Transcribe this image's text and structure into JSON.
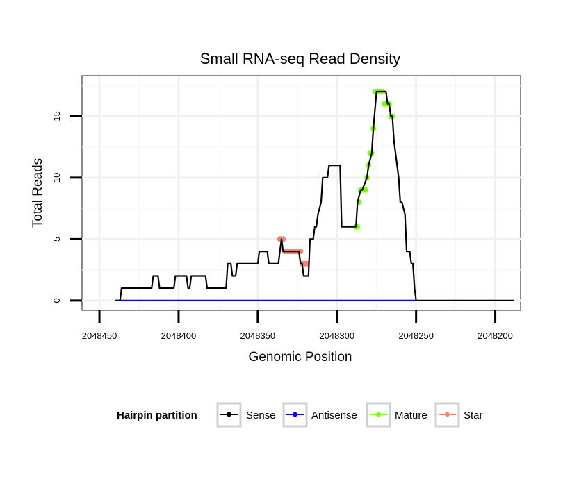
{
  "chart_data": {
    "type": "line",
    "title": "Small RNA-seq Read Density",
    "xlabel": "Genomic Position",
    "ylabel": "Total Reads",
    "xlim": [
      2048461,
      2048184
    ],
    "ylim": [
      -0.8,
      18.3
    ],
    "x_reversed": true,
    "grid": true,
    "x_ticks": [
      2048450,
      2048400,
      2048350,
      2048300,
      2048250,
      2048200
    ],
    "y_ticks": [
      0,
      5,
      10,
      15
    ],
    "legend": {
      "title": "Hairpin partition",
      "position": "bottom",
      "entries": [
        {
          "name": "Sense",
          "color": "#000000"
        },
        {
          "name": "Antisense",
          "color": "#0000ff"
        },
        {
          "name": "Mature",
          "color": "#7fff00"
        },
        {
          "name": "Star",
          "color": "#fa8072"
        }
      ]
    },
    "series": [
      {
        "name": "Sense",
        "color": "#000000",
        "kind": "line",
        "x": [
          2048440,
          2048437,
          2048436,
          2048417,
          2048416,
          2048413,
          2048412,
          2048403,
          2048402,
          2048395,
          2048394,
          2048393,
          2048392,
          2048383,
          2048382,
          2048370,
          2048369,
          2048367,
          2048366,
          2048364,
          2048363,
          2048358,
          2048357,
          2048350,
          2048349,
          2048344,
          2048343,
          2048337,
          2048336,
          2048335,
          2048334,
          2048324,
          2048323,
          2048322,
          2048321,
          2048318,
          2048317,
          2048315,
          2048314,
          2048313,
          2048312,
          2048310,
          2048309,
          2048308,
          2048307,
          2048306,
          2048305,
          2048303,
          2048302,
          2048301,
          2048300,
          2048298,
          2048297,
          2048288,
          2048287,
          2048285,
          2048284,
          2048281,
          2048280,
          2048278,
          2048277,
          2048275,
          2048273,
          2048271,
          2048269,
          2048268,
          2048267,
          2048266,
          2048265,
          2048264,
          2048262,
          2048261,
          2048260,
          2048259,
          2048257,
          2048256,
          2048255,
          2048254,
          2048253,
          2048252,
          2048251,
          2048250,
          2048250,
          2048188
        ],
        "y": [
          0,
          0,
          1,
          1,
          2,
          2,
          1,
          1,
          2,
          2,
          1,
          1,
          2,
          2,
          1,
          1,
          3,
          3,
          2,
          2,
          3,
          3,
          3,
          3,
          4,
          4,
          3,
          3,
          4,
          5,
          4,
          4,
          3,
          3,
          2,
          2,
          5,
          5,
          6,
          6,
          7,
          8,
          10,
          10,
          10,
          10,
          11,
          11,
          11,
          11,
          11,
          11,
          6,
          6,
          8,
          9,
          9,
          10,
          11,
          12,
          14,
          17,
          17,
          17,
          17,
          16,
          16,
          15,
          15,
          13,
          11,
          10,
          8,
          8,
          7,
          4,
          4,
          4,
          3,
          3,
          1,
          0,
          0,
          0
        ]
      },
      {
        "name": "Antisense",
        "color": "#0000ff",
        "kind": "line",
        "x": [
          2048440,
          2048250
        ],
        "y": [
          0,
          0
        ]
      },
      {
        "name": "Mature",
        "color": "#7fff00",
        "kind": "points",
        "x": [
          2048288,
          2048287,
          2048286,
          2048285,
          2048284,
          2048283,
          2048282,
          2048281,
          2048280,
          2048279,
          2048278,
          2048277,
          2048276,
          2048275,
          2048274,
          2048273,
          2048272,
          2048271,
          2048270,
          2048269,
          2048268,
          2048267,
          2048266,
          2048265
        ],
        "y": [
          6,
          6,
          8,
          9,
          9,
          9,
          9,
          10,
          11,
          12,
          12,
          14,
          17,
          17,
          17,
          17,
          17,
          17,
          16,
          16,
          16,
          16,
          15,
          15
        ]
      },
      {
        "name": "Star",
        "color": "#fa8072",
        "kind": "points",
        "x": [
          2048336,
          2048335,
          2048334,
          2048333,
          2048332,
          2048331,
          2048330,
          2048329,
          2048328,
          2048327,
          2048326,
          2048325,
          2048324,
          2048323,
          2048322,
          2048321,
          2048320,
          2048319
        ],
        "y": [
          5,
          5,
          5,
          4,
          4,
          4,
          4,
          4,
          4,
          4,
          4,
          4,
          4,
          4,
          3,
          3,
          3,
          3
        ]
      }
    ]
  }
}
